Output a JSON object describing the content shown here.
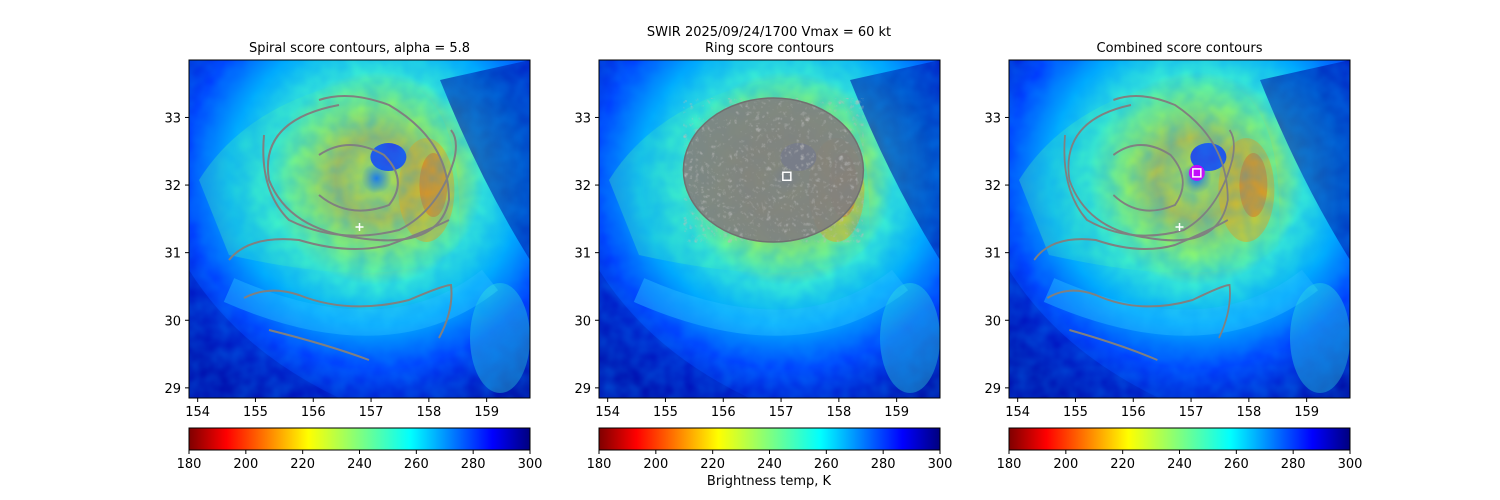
{
  "figure": {
    "suptitle_line1": "SWIR  2025/09/24/1700    Vmax = 60 kt",
    "colorbar_label": "Brightness temp, K"
  },
  "chart_data": [
    {
      "type": "heatmap",
      "title": "Spiral score contours, alpha =  5.8",
      "xlim": [
        153.85,
        159.75
      ],
      "ylim": [
        28.85,
        33.85
      ],
      "xticks": [
        154,
        155,
        156,
        157,
        158,
        159
      ],
      "yticks": [
        29,
        30,
        31,
        32,
        33
      ],
      "center": [
        157.3,
        32.0
      ],
      "markers": [
        {
          "symbol": "plus",
          "x": 156.8,
          "y": 31.38,
          "color": "#ffffff"
        }
      ],
      "overlay": "spiral-contours"
    },
    {
      "type": "heatmap",
      "title": "Ring score contours",
      "xlim": [
        153.85,
        159.75
      ],
      "ylim": [
        28.85,
        33.85
      ],
      "xticks": [
        154,
        155,
        156,
        157,
        158,
        159
      ],
      "yticks": [
        29,
        30,
        31,
        32,
        33
      ],
      "center": [
        157.3,
        32.0
      ],
      "markers": [
        {
          "symbol": "square",
          "x": 157.1,
          "y": 32.13,
          "color": "#ffffff"
        }
      ],
      "overlay": "ring-contours"
    },
    {
      "type": "heatmap",
      "title": "Combined score contours",
      "xlim": [
        153.85,
        159.75
      ],
      "ylim": [
        28.85,
        33.85
      ],
      "xticks": [
        154,
        155,
        156,
        157,
        158,
        159
      ],
      "yticks": [
        29,
        30,
        31,
        32,
        33
      ],
      "center": [
        157.3,
        32.0
      ],
      "markers": [
        {
          "symbol": "plus",
          "x": 156.8,
          "y": 31.38,
          "color": "#ffffff"
        },
        {
          "symbol": "square",
          "x": 157.1,
          "y": 32.18,
          "color": "#ffffff"
        }
      ],
      "overlay": "combined-contours"
    }
  ],
  "colorbar": {
    "cmap": "jet_r",
    "vmin": 180,
    "vmax": 300,
    "ticks": [
      180,
      200,
      220,
      240,
      260,
      280,
      300
    ],
    "contour_color": "#808080"
  }
}
